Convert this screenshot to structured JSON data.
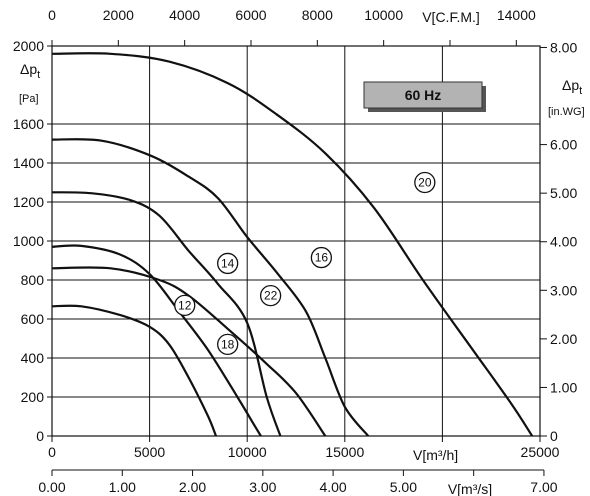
{
  "chart_data": {
    "type": "line",
    "badge": "60 Hz",
    "x_axes": {
      "bottom_primary": {
        "label": "V[m³/h]",
        "ticks": [
          0,
          5000,
          10000,
          15000,
          20000,
          25000
        ],
        "tick_labels": [
          "0",
          "5000",
          "10000",
          "15000",
          "",
          "25000"
        ],
        "range": [
          0,
          25000
        ]
      },
      "bottom_secondary": {
        "label": "V[m³/s]",
        "ticks": [
          0,
          1,
          2,
          3,
          4,
          5,
          6,
          7
        ],
        "tick_labels": [
          "0.00",
          "1.00",
          "2.00",
          "3.00",
          "4.00",
          "5.00",
          "",
          "7.00"
        ],
        "range": [
          0,
          6.944
        ]
      },
      "top": {
        "label": "V[C.F.M.]",
        "ticks": [
          0,
          2000,
          4000,
          6000,
          8000,
          10000,
          12000,
          14000
        ],
        "tick_labels": [
          "0",
          "2000",
          "4000",
          "6000",
          "8000",
          "10000",
          "",
          "14000"
        ],
        "range": [
          0,
          14714
        ]
      }
    },
    "y_axes": {
      "left": {
        "label_main": "Δp",
        "label_sub": "t",
        "unit": "[Pa]",
        "ticks": [
          0,
          200,
          400,
          600,
          800,
          1000,
          1200,
          1400,
          1600,
          2000
        ],
        "tick_labels": [
          "0",
          "200",
          "400",
          "600",
          "800",
          "1000",
          "1200",
          "1400",
          "1600",
          "2000"
        ],
        "range": [
          0,
          2000
        ]
      },
      "right": {
        "label_main": "Δp",
        "label_sub": "t",
        "unit": "[in.WG]",
        "ticks": [
          0,
          1,
          2,
          3,
          4,
          5,
          6,
          8
        ],
        "tick_labels": [
          "0",
          "1.00",
          "2.00",
          "3.00",
          "4.00",
          "5.00",
          "6.00",
          "8.00"
        ],
        "range": [
          0,
          8.03
        ]
      }
    },
    "grid": true,
    "series": [
      {
        "name": "12",
        "label_at": [
          6800,
          670
        ],
        "points": [
          [
            0,
            665
          ],
          [
            1500,
            665
          ],
          [
            3500,
            620
          ],
          [
            5000,
            560
          ],
          [
            6000,
            470
          ],
          [
            7000,
            300
          ],
          [
            8000,
            100
          ],
          [
            8400,
            0
          ]
        ]
      },
      {
        "name": "14",
        "label_at": [
          9000,
          885
        ],
        "points": [
          [
            0,
            970
          ],
          [
            1500,
            975
          ],
          [
            3500,
            930
          ],
          [
            5000,
            830
          ],
          [
            6500,
            640
          ],
          [
            8000,
            440
          ],
          [
            9500,
            200
          ],
          [
            10400,
            50
          ],
          [
            10700,
            0
          ]
        ]
      },
      {
        "name": "16",
        "label_at": [
          13800,
          915
        ],
        "points": [
          [
            0,
            1250
          ],
          [
            2000,
            1245
          ],
          [
            4000,
            1210
          ],
          [
            5500,
            1130
          ],
          [
            7000,
            950
          ],
          [
            8500,
            780
          ],
          [
            10000,
            580
          ],
          [
            11000,
            200
          ],
          [
            11700,
            0
          ]
        ]
      },
      {
        "name": "18",
        "label_at": [
          9000,
          470
        ],
        "points": [
          [
            0,
            860
          ],
          [
            3000,
            860
          ],
          [
            5500,
            800
          ],
          [
            7000,
            720
          ],
          [
            9000,
            550
          ],
          [
            11000,
            370
          ],
          [
            12500,
            220
          ],
          [
            14000,
            0
          ]
        ]
      },
      {
        "name": "20",
        "label_at": [
          19100,
          1300
        ],
        "points": [
          [
            0,
            1960
          ],
          [
            3000,
            1960
          ],
          [
            6000,
            1920
          ],
          [
            9000,
            1810
          ],
          [
            11500,
            1650
          ],
          [
            14000,
            1450
          ],
          [
            16500,
            1170
          ],
          [
            19000,
            800
          ],
          [
            21500,
            450
          ],
          [
            23500,
            170
          ],
          [
            24600,
            0
          ]
        ]
      },
      {
        "name": "22",
        "label_at": [
          11200,
          720
        ],
        "points": [
          [
            0,
            1520
          ],
          [
            2500,
            1515
          ],
          [
            5000,
            1440
          ],
          [
            7000,
            1330
          ],
          [
            8500,
            1220
          ],
          [
            10000,
            1020
          ],
          [
            11500,
            840
          ],
          [
            13000,
            640
          ],
          [
            14000,
            400
          ],
          [
            15000,
            150
          ],
          [
            16200,
            0
          ]
        ]
      }
    ]
  }
}
